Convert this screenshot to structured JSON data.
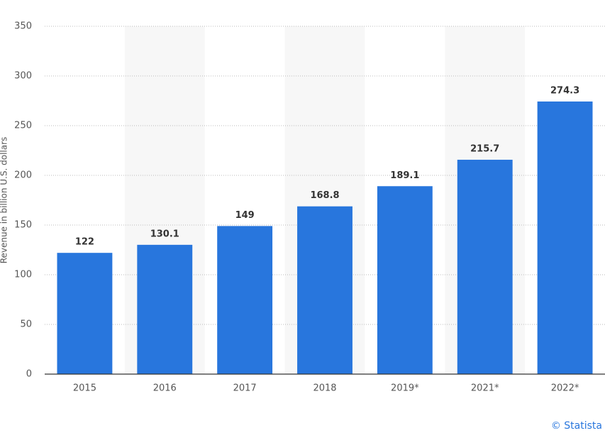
{
  "chart_data": {
    "type": "bar",
    "y_label": "Revenue in billion U.S. dollars",
    "credit": "© Statista",
    "categories": [
      "2015",
      "2016",
      "2017",
      "2018",
      "2019*",
      "2021*",
      "2022*"
    ],
    "values": [
      122,
      130.1,
      149,
      168.8,
      189.1,
      215.7,
      274.3
    ],
    "color": "#2876dd",
    "ylim": [
      0,
      350
    ],
    "yticks": [
      0,
      50,
      100,
      150,
      200,
      250,
      300,
      350
    ],
    "grid": true
  }
}
